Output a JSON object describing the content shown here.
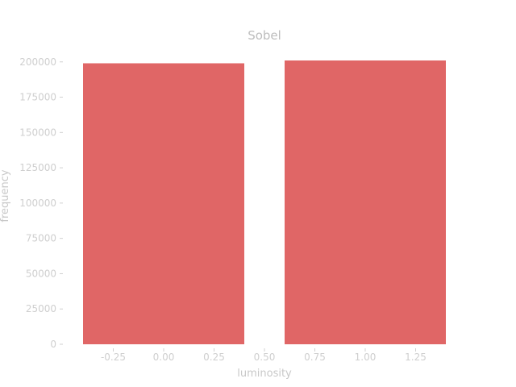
{
  "chart_data": {
    "type": "bar",
    "title": "Sobel",
    "xlabel": "luminosity",
    "ylabel": "frequency",
    "bars": [
      {
        "x_start": -0.4,
        "x_end": 0.4,
        "value": 199000
      },
      {
        "x_start": 0.6,
        "x_end": 1.4,
        "value": 201000
      }
    ],
    "xticks": [
      -0.25,
      0.0,
      0.25,
      0.5,
      0.75,
      1.0,
      1.25
    ],
    "xtick_labels": [
      "-0.25",
      "0.00",
      "0.25",
      "0.50",
      "0.75",
      "1.00",
      "1.25"
    ],
    "yticks": [
      0,
      25000,
      50000,
      75000,
      100000,
      125000,
      150000,
      175000,
      200000
    ],
    "ytick_labels": [
      "0",
      "25000",
      "50000",
      "75000",
      "100000",
      "125000",
      "150000",
      "175000",
      "200000"
    ],
    "xlim": [
      -0.4,
      1.4
    ],
    "ylim": [
      0,
      201000
    ],
    "grid": false,
    "colors": {
      "bar": "#e06666"
    }
  }
}
